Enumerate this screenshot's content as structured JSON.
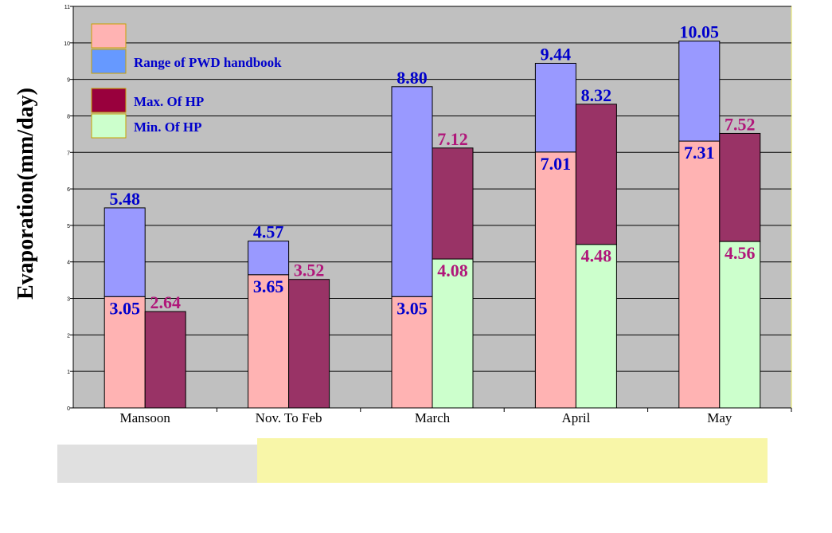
{
  "chart_data": {
    "type": "bar",
    "ylabel": "Evaporation(mm/day)",
    "ylim": [
      0,
      11
    ],
    "yticks": [
      0,
      1,
      2,
      3,
      4,
      5,
      6,
      7,
      8,
      9,
      10,
      11
    ],
    "grid": true,
    "legend_position": "top-left",
    "categories": [
      "Mansoon",
      "Nov. To Feb",
      "March",
      "April",
      "May"
    ],
    "legend": [
      {
        "label": "",
        "color": "#ffb3b3"
      },
      {
        "label": "Range of  PWD handbook",
        "color": "#6699ff"
      },
      {
        "label": "Max. Of  HP",
        "color": "#99003d"
      },
      {
        "label": "Min. Of HP",
        "color": "#ccffcc"
      }
    ],
    "series": [
      {
        "name": "Range of  PWD handbook",
        "min": [
          3.05,
          3.65,
          3.05,
          7.01,
          7.31
        ],
        "max": [
          5.48,
          4.57,
          8.8,
          9.44,
          10.05
        ],
        "min_labels": [
          "3.05",
          "3.65",
          "3.05",
          "7.01",
          "7.31"
        ],
        "max_labels": [
          "5.48",
          "4.57",
          "8.80",
          "9.44",
          "10.05"
        ]
      },
      {
        "name": "HP",
        "min": [
          null,
          null,
          4.08,
          4.48,
          4.56
        ],
        "max": [
          2.64,
          3.52,
          7.12,
          8.32,
          7.52
        ],
        "min_labels": [
          "",
          "",
          "4.08",
          "4.48",
          "4.56"
        ],
        "max_labels": [
          "2.64",
          "3.52",
          "7.12",
          "8.32",
          "7.52"
        ]
      }
    ],
    "colors": {
      "plot_bg": "#c0c0c0",
      "pwd_low": "#ffb3b3",
      "pwd_range": "#9999ff",
      "hp_max": "#993366",
      "hp_min": "#ccffcc",
      "blue_label": "#0000cc",
      "magenta_label": "#b0177a",
      "legend_text": "#0000cc",
      "plot_border": "#e8e860"
    }
  }
}
